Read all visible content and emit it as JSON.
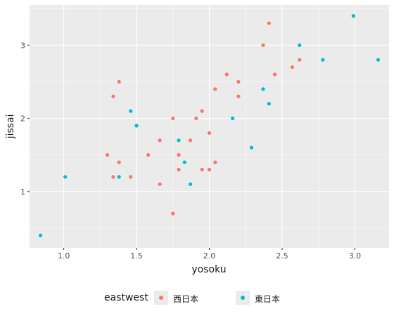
{
  "chart_data": {
    "type": "scatter",
    "title": "",
    "xlabel": "yosoku",
    "ylabel": "jissai",
    "xlim": [
      0.765,
      3.235
    ],
    "ylim": [
      0.23,
      3.55
    ],
    "xticks": [
      1.0,
      1.5,
      2.0,
      2.5,
      3.0
    ],
    "xtick_labels": [
      "1.0",
      "1.5",
      "2.0",
      "2.5",
      "3.0"
    ],
    "yticks": [
      1,
      2,
      3
    ],
    "ytick_labels": [
      "1",
      "2",
      "3"
    ],
    "grid": true,
    "legend": {
      "title": "eastwest",
      "position": "bottom"
    },
    "series": [
      {
        "name": "西日本",
        "color": "#F8766D",
        "points": [
          [
            1.3,
            1.5
          ],
          [
            1.34,
            1.2
          ],
          [
            1.34,
            2.3
          ],
          [
            1.38,
            1.4
          ],
          [
            1.38,
            2.5
          ],
          [
            1.46,
            1.2
          ],
          [
            1.5,
            1.9
          ],
          [
            1.58,
            1.5
          ],
          [
            1.66,
            1.1
          ],
          [
            1.66,
            1.7
          ],
          [
            1.75,
            0.7
          ],
          [
            1.75,
            2.0
          ],
          [
            1.79,
            1.3
          ],
          [
            1.79,
            1.5
          ],
          [
            1.87,
            1.7
          ],
          [
            1.91,
            2.0
          ],
          [
            1.95,
            1.3
          ],
          [
            1.95,
            2.1
          ],
          [
            2.0,
            1.3
          ],
          [
            2.0,
            1.8
          ],
          [
            2.04,
            1.4
          ],
          [
            2.04,
            2.4
          ],
          [
            2.12,
            2.6
          ],
          [
            2.2,
            2.3
          ],
          [
            2.2,
            2.5
          ],
          [
            2.37,
            3.0
          ],
          [
            2.41,
            3.3
          ],
          [
            2.45,
            2.6
          ],
          [
            2.57,
            2.7
          ],
          [
            2.62,
            2.8
          ]
        ]
      },
      {
        "name": "東日本",
        "color": "#00BFC4",
        "points": [
          [
            0.84,
            0.4
          ],
          [
            1.01,
            1.2
          ],
          [
            1.38,
            1.2
          ],
          [
            1.46,
            2.1
          ],
          [
            1.5,
            1.9
          ],
          [
            1.79,
            1.7
          ],
          [
            1.83,
            1.4
          ],
          [
            1.87,
            1.1
          ],
          [
            2.16,
            2.0
          ],
          [
            2.29,
            1.6
          ],
          [
            2.37,
            2.4
          ],
          [
            2.41,
            2.2
          ],
          [
            2.62,
            3.0
          ],
          [
            2.78,
            2.8
          ],
          [
            2.99,
            3.4
          ],
          [
            3.16,
            2.8
          ]
        ]
      }
    ]
  }
}
